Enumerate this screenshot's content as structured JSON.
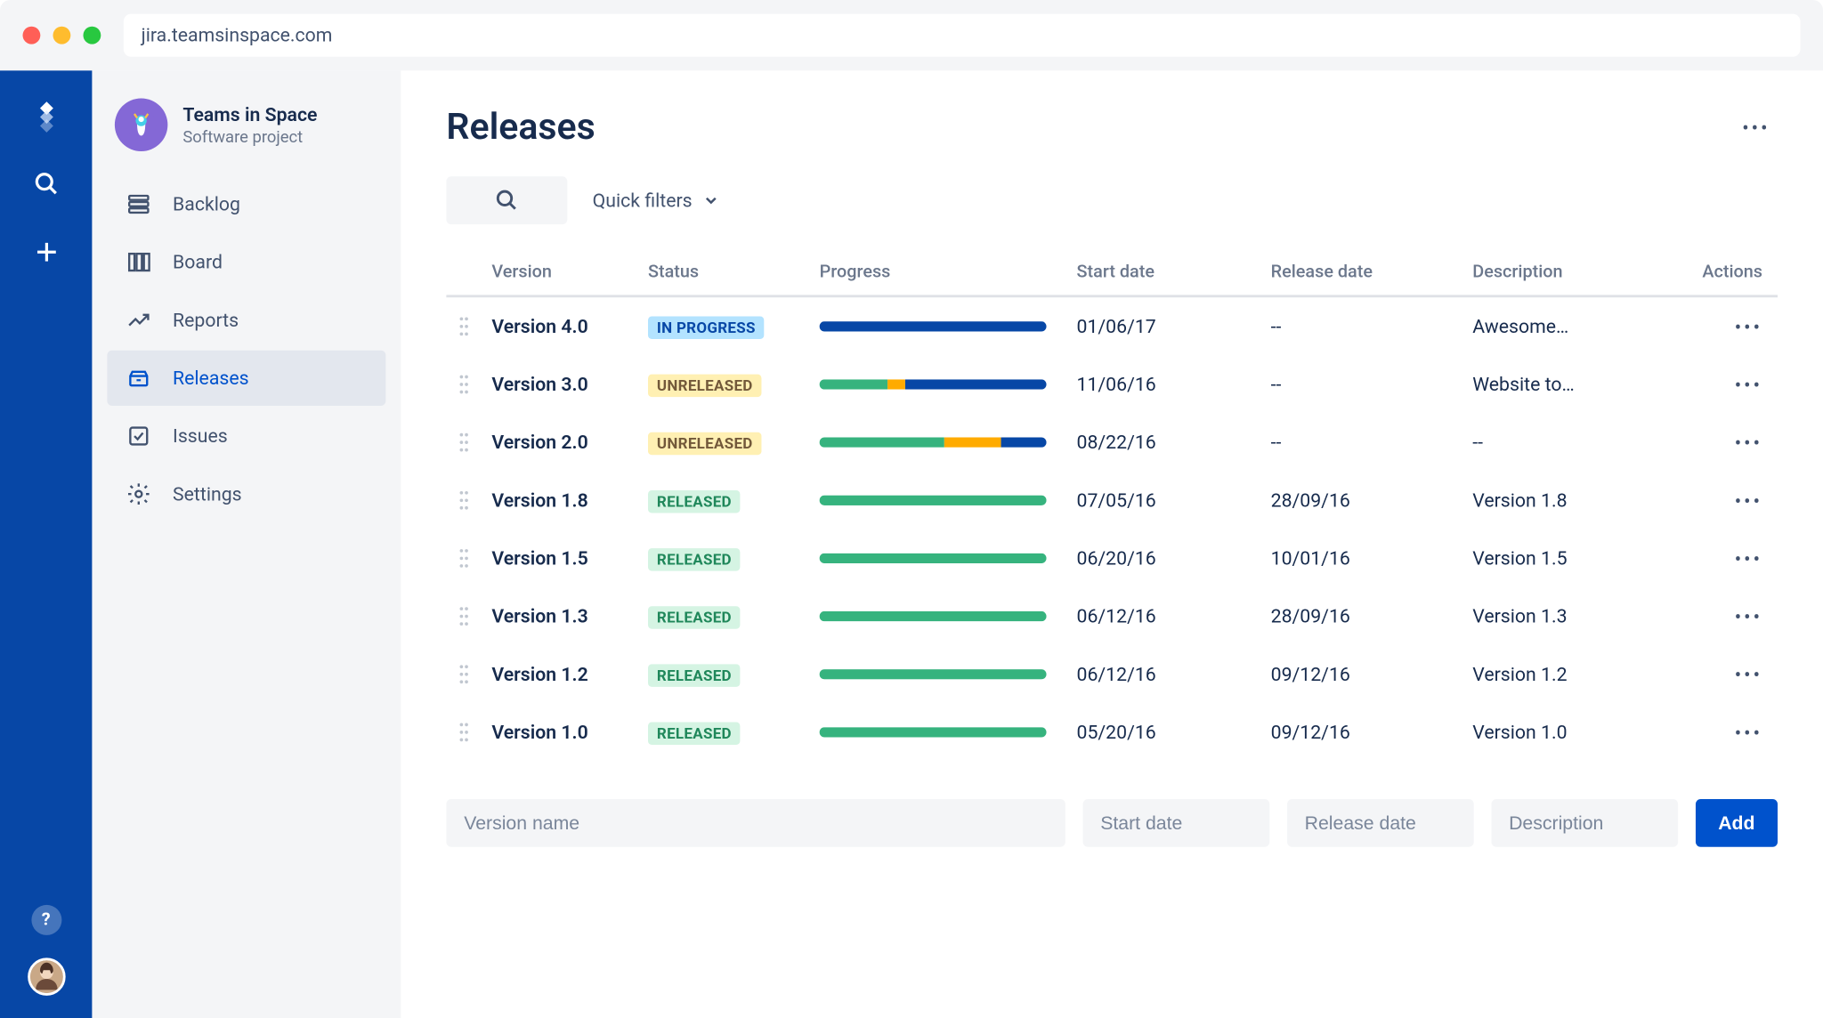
{
  "browser": {
    "url": "jira.teamsinspace.com"
  },
  "colors": {
    "global_nav": "#0747a6",
    "sidebar_bg": "#f4f5f7",
    "primary": "#0052cc",
    "text": "#172b4d",
    "text_subtle": "#6b778c",
    "status_inprogress_bg": "#b3e3ff",
    "status_inprogress_fg": "#0747a6",
    "status_unreleased_bg": "#fff0b3",
    "status_unreleased_fg": "#72593a",
    "status_released_bg": "#d5f4e3",
    "status_released_fg": "#1f875a",
    "progress_blue": "#0747a6",
    "progress_green": "#36b37e",
    "progress_yellow": "#ffab00"
  },
  "project": {
    "name": "Teams in Space",
    "type": "Software project"
  },
  "sidebar": {
    "items": [
      {
        "label": "Backlog",
        "icon": "backlog"
      },
      {
        "label": "Board",
        "icon": "board"
      },
      {
        "label": "Reports",
        "icon": "reports"
      },
      {
        "label": "Releases",
        "icon": "releases",
        "active": true
      },
      {
        "label": "Issues",
        "icon": "issues"
      },
      {
        "label": "Settings",
        "icon": "settings"
      }
    ]
  },
  "page": {
    "title": "Releases",
    "quick_filters_label": "Quick filters"
  },
  "table": {
    "headers": {
      "version": "Version",
      "status": "Status",
      "progress": "Progress",
      "start": "Start date",
      "release": "Release date",
      "desc": "Description",
      "actions": "Actions"
    },
    "rows": [
      {
        "version": "Version 4.0",
        "status": "IN PROGRESS",
        "status_kind": "inprogress",
        "progress": [
          {
            "color": "#0747a6",
            "pct": 100
          }
        ],
        "start": "01/06/17",
        "release": "--",
        "desc": "Awesome…"
      },
      {
        "version": "Version 3.0",
        "status": "UNRELEASED",
        "status_kind": "unreleased",
        "progress": [
          {
            "color": "#36b37e",
            "pct": 30
          },
          {
            "color": "#ffab00",
            "pct": 8
          },
          {
            "color": "#0747a6",
            "pct": 62
          }
        ],
        "start": "11/06/16",
        "release": "--",
        "desc": "Website to…"
      },
      {
        "version": "Version 2.0",
        "status": "UNRELEASED",
        "status_kind": "unreleased",
        "progress": [
          {
            "color": "#36b37e",
            "pct": 55
          },
          {
            "color": "#ffab00",
            "pct": 25
          },
          {
            "color": "#0747a6",
            "pct": 20
          }
        ],
        "start": "08/22/16",
        "release": "--",
        "desc": "--"
      },
      {
        "version": "Version 1.8",
        "status": "RELEASED",
        "status_kind": "released",
        "progress": [
          {
            "color": "#36b37e",
            "pct": 100
          }
        ],
        "start": "07/05/16",
        "release": "28/09/16",
        "desc": "Version 1.8"
      },
      {
        "version": "Version 1.5",
        "status": "RELEASED",
        "status_kind": "released",
        "progress": [
          {
            "color": "#36b37e",
            "pct": 100
          }
        ],
        "start": "06/20/16",
        "release": "10/01/16",
        "desc": "Version 1.5"
      },
      {
        "version": "Version 1.3",
        "status": "RELEASED",
        "status_kind": "released",
        "progress": [
          {
            "color": "#36b37e",
            "pct": 100
          }
        ],
        "start": "06/12/16",
        "release": "28/09/16",
        "desc": "Version 1.3"
      },
      {
        "version": "Version 1.2",
        "status": "RELEASED",
        "status_kind": "released",
        "progress": [
          {
            "color": "#36b37e",
            "pct": 100
          }
        ],
        "start": "06/12/16",
        "release": "09/12/16",
        "desc": "Version 1.2"
      },
      {
        "version": "Version 1.0",
        "status": "RELEASED",
        "status_kind": "released",
        "progress": [
          {
            "color": "#36b37e",
            "pct": 100
          }
        ],
        "start": "05/20/16",
        "release": "09/12/16",
        "desc": "Version 1.0"
      }
    ]
  },
  "create": {
    "version_placeholder": "Version name",
    "start_placeholder": "Start date",
    "release_placeholder": "Release date",
    "desc_placeholder": "Description",
    "add_label": "Add"
  }
}
